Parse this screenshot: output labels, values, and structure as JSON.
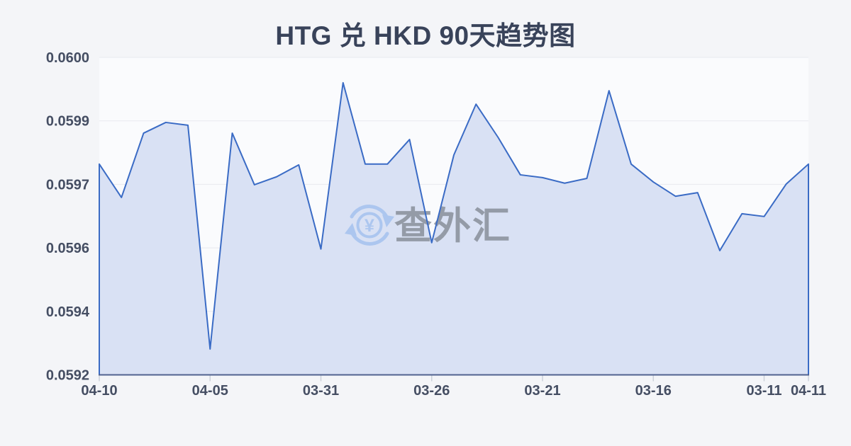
{
  "page": {
    "background": "#f4f5f8"
  },
  "chart_data": {
    "type": "area",
    "title": "HTG 兑 HKD 90天趋势图",
    "xlabel": "",
    "ylabel": "",
    "x_dates": [
      "04-10",
      "04-09",
      "04-08",
      "04-07",
      "04-06",
      "04-05",
      "04-04",
      "04-03",
      "04-02",
      "04-01",
      "03-31",
      "03-30",
      "03-29",
      "03-28",
      "03-27",
      "03-26",
      "03-25",
      "03-24",
      "03-23",
      "03-22",
      "03-21",
      "03-20",
      "03-19",
      "03-18",
      "03-17",
      "03-16",
      "03-15",
      "03-14",
      "03-13",
      "03-12",
      "03-11",
      "03-10",
      "04-11"
    ],
    "values": [
      0.059731,
      0.059647,
      0.059809,
      0.059836,
      0.059829,
      0.059265,
      0.059809,
      0.059679,
      0.059699,
      0.059729,
      0.059517,
      0.059936,
      0.059731,
      0.059731,
      0.059793,
      0.059533,
      0.059754,
      0.059882,
      0.059798,
      0.059704,
      0.059697,
      0.059683,
      0.059695,
      0.059916,
      0.059731,
      0.059686,
      0.05965,
      0.059659,
      0.059513,
      0.059606,
      0.059599,
      0.059681,
      0.059731
    ],
    "x_tick_labels": [
      "04-10",
      "04-05",
      "03-31",
      "03-26",
      "03-21",
      "03-16",
      "03-11",
      "04-11"
    ],
    "x_tick_indices": [
      0,
      5,
      10,
      15,
      20,
      25,
      30,
      32
    ],
    "y_tick_labels": [
      "0.0600",
      "0.0599",
      "0.0597",
      "0.0596",
      "0.0594",
      "0.0592"
    ],
    "ylim": [
      0.0592,
      0.06
    ],
    "grid": "horizontal",
    "legend": "none",
    "y_axis_side": "left"
  },
  "watermark": {
    "text": "查外汇",
    "icon": "currency-exchange-circular-arrows-yen"
  },
  "colors": {
    "page-bg": "#f4f5f8",
    "plot-bg": "#fafbfd",
    "grid-line": "#e7eaef",
    "series-line": "#3a6bc5",
    "series-fill": "#d9e1f4",
    "axis-line": "#51628f",
    "tick-mark": "#ccd1da",
    "title-text": "#39435a",
    "axis-label-text": "#454e63",
    "watermark-blue": "#a9c4ef",
    "watermark-gray": "#8f96a1"
  }
}
